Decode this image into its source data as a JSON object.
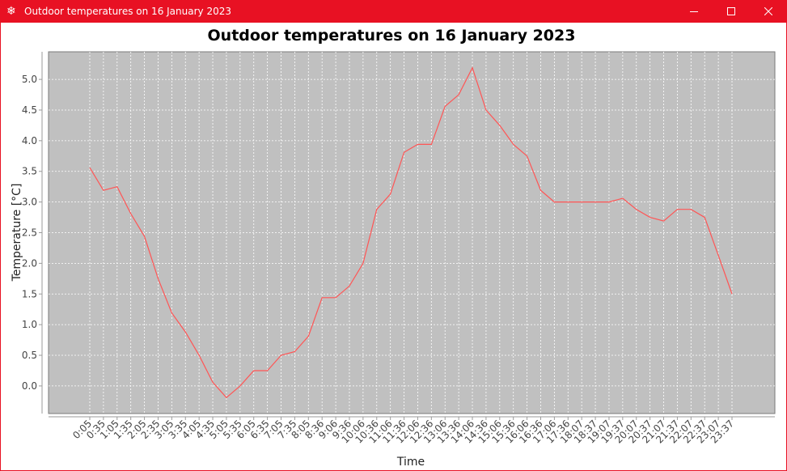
{
  "window": {
    "title": "Outdoor temperatures on 16 January 2023",
    "icon": "snowflake-icon",
    "controls": [
      "minimize-icon",
      "maximize-icon",
      "close-icon"
    ],
    "accent_color": "#e81123"
  },
  "chart_data": {
    "type": "line",
    "title": "Outdoor temperatures on 16 January 2023",
    "xlabel": "Time",
    "ylabel": "Temperature [°C]",
    "ylim": [
      -0.45,
      5.45
    ],
    "yticks": [
      0.0,
      0.5,
      1.0,
      1.5,
      2.0,
      2.5,
      3.0,
      3.5,
      4.0,
      4.5,
      5.0
    ],
    "ytick_labels": [
      "0.0",
      "0.5",
      "1.0",
      "1.5",
      "2.0",
      "2.5",
      "3.0",
      "3.5",
      "4.0",
      "4.5",
      "5.0"
    ],
    "grid": true,
    "legend": "none",
    "plot_background": "#c0c0c0",
    "series_color": "#ff5555",
    "categories": [
      "0:05",
      "0:35",
      "1:05",
      "1:35",
      "2:05",
      "2:35",
      "3:05",
      "3:35",
      "4:05",
      "4:35",
      "5:05",
      "5:35",
      "6:05",
      "6:35",
      "7:05",
      "7:35",
      "8:05",
      "8:36",
      "9:06",
      "9:36",
      "10:06",
      "10:36",
      "11:06",
      "11:36",
      "12:06",
      "12:36",
      "13:06",
      "13:36",
      "14:06",
      "14:36",
      "15:06",
      "15:36",
      "16:06",
      "16:36",
      "17:06",
      "17:36",
      "18:07",
      "18:37",
      "19:07",
      "19:37",
      "20:07",
      "20:37",
      "21:07",
      "21:37",
      "22:07",
      "22:37",
      "23:07",
      "23:37"
    ],
    "series": [
      {
        "values": [
          3.56,
          3.19,
          3.25,
          2.81,
          2.44,
          1.75,
          1.19,
          0.88,
          0.5,
          0.06,
          -0.19,
          0.0,
          0.25,
          0.25,
          0.5,
          0.56,
          0.81,
          1.44,
          1.44,
          1.63,
          2.0,
          2.88,
          3.13,
          3.81,
          3.94,
          3.94,
          4.56,
          4.75,
          5.19,
          4.5,
          4.25,
          3.94,
          3.75,
          3.19,
          3.0,
          3.0,
          3.0,
          3.0,
          3.0,
          3.06,
          2.88,
          2.75,
          2.69,
          2.88,
          2.88,
          2.75,
          2.13,
          1.5
        ]
      }
    ]
  }
}
